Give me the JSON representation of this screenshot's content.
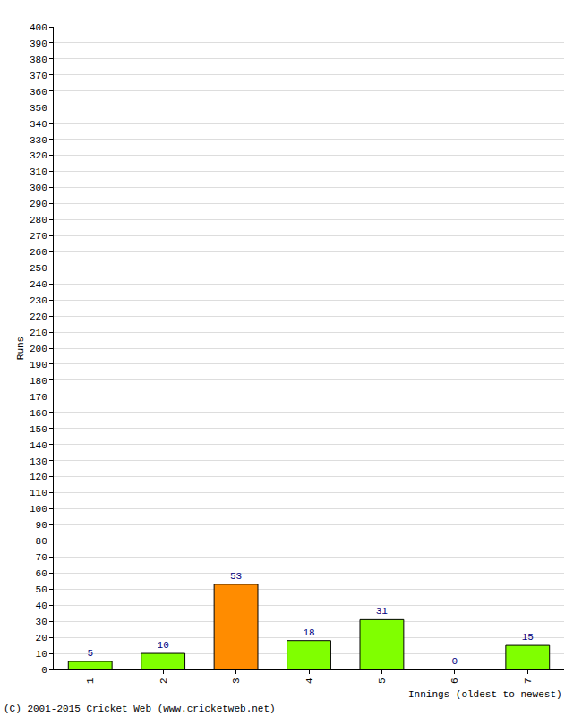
{
  "chart_data": {
    "type": "bar",
    "x_label": "Innings (oldest to newest)",
    "y_label": "Runs",
    "annotations": [
      "(C) 2001-2015 Cricket Web (www.cricketweb.net)"
    ],
    "categories": [
      "1",
      "2",
      "3",
      "4",
      "5",
      "6",
      "7"
    ],
    "values": [
      5,
      10,
      53,
      18,
      31,
      0,
      15
    ],
    "colors": [
      "#80ff00",
      "#80ff00",
      "#ff8c00",
      "#80ff00",
      "#80ff00",
      "#80ff00",
      "#80ff00"
    ],
    "ylim": [
      0,
      400
    ],
    "yticks": [
      0,
      10,
      20,
      30,
      40,
      50,
      60,
      70,
      80,
      90,
      100,
      110,
      120,
      130,
      140,
      150,
      160,
      170,
      180,
      190,
      200,
      210,
      220,
      230,
      240,
      250,
      260,
      270,
      280,
      290,
      300,
      310,
      320,
      330,
      340,
      350,
      360,
      370,
      380,
      390,
      400
    ],
    "grid": true,
    "data_labels": true
  }
}
